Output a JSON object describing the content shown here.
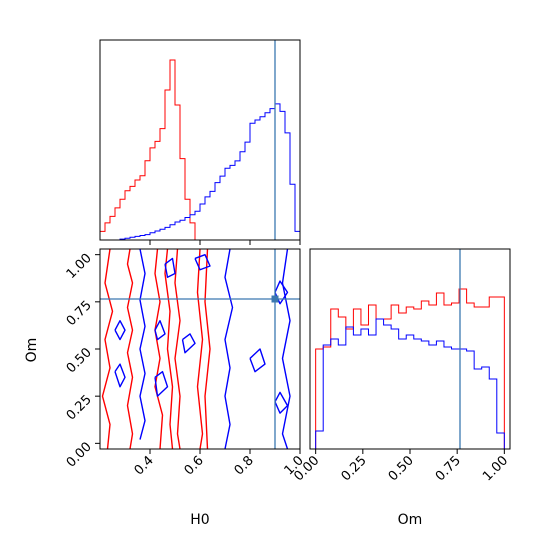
{
  "chart_data": {
    "type": "corner",
    "parameters": [
      "H0",
      "Om"
    ],
    "truths": {
      "H0": 0.9,
      "Om": 0.765
    },
    "series": [
      {
        "color": "#ff0000"
      },
      {
        "color": "#0000ff"
      }
    ],
    "truth_color": "#3b78b0",
    "h0_hist": {
      "xlim": [
        0.2,
        1.0
      ],
      "bin_edges": [
        0.2,
        0.22,
        0.24,
        0.26,
        0.28,
        0.3,
        0.32,
        0.34,
        0.36,
        0.38,
        0.4,
        0.42,
        0.44,
        0.46,
        0.48,
        0.5,
        0.52,
        0.54,
        0.56,
        0.58,
        0.6,
        0.62,
        0.64,
        0.66,
        0.68,
        0.7,
        0.72,
        0.74,
        0.76,
        0.78,
        0.8,
        0.82,
        0.84,
        0.86,
        0.88,
        0.9,
        0.92,
        0.94,
        0.96,
        0.98,
        1.0
      ],
      "red": [
        0.04,
        0.08,
        0.11,
        0.15,
        0.19,
        0.23,
        0.25,
        0.28,
        0.3,
        0.37,
        0.43,
        0.46,
        0.52,
        0.7,
        0.84,
        0.63,
        0.38,
        0.19,
        0.08,
        0.0,
        0.0,
        0.0,
        0.0,
        0.0,
        0.0,
        0.0,
        0.0,
        0.0,
        0.0,
        0.0,
        0.0,
        0.0,
        0.0,
        0.0,
        0.0,
        0.0,
        0.0,
        0.0,
        0.0,
        0.0
      ],
      "blue": [
        0.0,
        0.0,
        0.0,
        0.0,
        0.004,
        0.008,
        0.013,
        0.017,
        0.021,
        0.025,
        0.034,
        0.042,
        0.05,
        0.059,
        0.071,
        0.084,
        0.092,
        0.105,
        0.118,
        0.134,
        0.168,
        0.201,
        0.227,
        0.268,
        0.298,
        0.335,
        0.348,
        0.369,
        0.412,
        0.457,
        0.545,
        0.56,
        0.575,
        0.594,
        0.613,
        0.635,
        0.6,
        0.5,
        0.26,
        0.04
      ]
    },
    "om_hist": {
      "xlim": [
        -0.03,
        1.03
      ],
      "ticks": [
        "0.00",
        "0.25",
        "0.50",
        "0.75",
        "1.00"
      ],
      "bin_edges": [
        0.0,
        0.04,
        0.08,
        0.12,
        0.16,
        0.2,
        0.24,
        0.28,
        0.32,
        0.36,
        0.4,
        0.44,
        0.48,
        0.52,
        0.56,
        0.6,
        0.64,
        0.68,
        0.72,
        0.76,
        0.8,
        0.84,
        0.88,
        0.92,
        0.96,
        1.0
      ],
      "red": [
        0.5,
        0.51,
        0.7,
        0.66,
        0.6,
        0.7,
        0.62,
        0.72,
        0.65,
        0.65,
        0.72,
        0.68,
        0.71,
        0.7,
        0.74,
        0.72,
        0.78,
        0.72,
        0.73,
        0.8,
        0.73,
        0.71,
        0.71,
        0.76,
        0.76
      ],
      "blue": [
        0.09,
        0.52,
        0.55,
        0.52,
        0.61,
        0.57,
        0.6,
        0.57,
        0.65,
        0.62,
        0.6,
        0.55,
        0.57,
        0.55,
        0.54,
        0.52,
        0.54,
        0.51,
        0.5,
        0.5,
        0.49,
        0.4,
        0.41,
        0.35,
        0.08
      ]
    },
    "joint": {
      "x_param": "H0",
      "y_param": "Om",
      "xlim": [
        0.2,
        1.0
      ],
      "ylim": [
        -0.03,
        1.03
      ],
      "xlabel": "H0",
      "ylabel": "Om",
      "x_ticks": [
        "0.4",
        "0.6",
        "0.8",
        "1.0"
      ],
      "y_ticks": [
        "0.00",
        "0.25",
        "0.50",
        "0.75",
        "1.00"
      ],
      "red_contours": [
        [
          [
            0.32,
            1.03
          ],
          [
            0.31,
            0.95
          ],
          [
            0.33,
            0.85
          ],
          [
            0.31,
            0.72
          ],
          [
            0.33,
            0.6
          ],
          [
            0.31,
            0.48
          ],
          [
            0.33,
            0.35
          ],
          [
            0.31,
            0.2
          ],
          [
            0.33,
            0.05
          ],
          [
            0.32,
            -0.03
          ]
        ],
        [
          [
            0.43,
            1.03
          ],
          [
            0.42,
            0.9
          ],
          [
            0.44,
            0.75
          ],
          [
            0.42,
            0.6
          ],
          [
            0.44,
            0.45
          ],
          [
            0.42,
            0.3
          ],
          [
            0.45,
            0.15
          ],
          [
            0.44,
            -0.03
          ]
        ],
        [
          [
            0.47,
            1.03
          ],
          [
            0.46,
            0.9
          ],
          [
            0.48,
            0.7
          ],
          [
            0.47,
            0.5
          ],
          [
            0.49,
            0.3
          ],
          [
            0.48,
            0.1
          ],
          [
            0.49,
            -0.03
          ]
        ],
        [
          [
            0.51,
            1.03
          ],
          [
            0.5,
            0.85
          ],
          [
            0.52,
            0.65
          ],
          [
            0.5,
            0.45
          ],
          [
            0.52,
            0.25
          ],
          [
            0.51,
            0.05
          ],
          [
            0.52,
            -0.03
          ]
        ],
        [
          [
            0.24,
            1.03
          ],
          [
            0.22,
            0.85
          ],
          [
            0.25,
            0.7
          ],
          [
            0.22,
            0.55
          ],
          [
            0.24,
            0.4
          ],
          [
            0.21,
            0.25
          ],
          [
            0.24,
            0.1
          ],
          [
            0.23,
            -0.03
          ]
        ],
        [
          [
            0.6,
            1.03
          ],
          [
            0.59,
            0.8
          ],
          [
            0.61,
            0.55
          ],
          [
            0.59,
            0.3
          ],
          [
            0.61,
            0.05
          ],
          [
            0.6,
            -0.03
          ]
        ],
        [
          [
            0.63,
            1.03
          ],
          [
            0.62,
            0.75
          ],
          [
            0.64,
            0.5
          ],
          [
            0.62,
            0.25
          ],
          [
            0.63,
            -0.03
          ]
        ]
      ],
      "blue_contours": [
        [
          [
            0.36,
            1.03
          ],
          [
            0.38,
            0.9
          ],
          [
            0.36,
            0.76
          ],
          [
            0.38,
            0.62
          ],
          [
            0.36,
            0.5
          ],
          [
            0.38,
            0.37
          ],
          [
            0.36,
            0.25
          ],
          [
            0.38,
            0.12
          ],
          [
            0.36,
            0.02
          ]
        ],
        [
          [
            0.72,
            1.03
          ],
          [
            0.7,
            0.88
          ],
          [
            0.73,
            0.72
          ],
          [
            0.7,
            0.55
          ],
          [
            0.72,
            0.4
          ],
          [
            0.7,
            0.25
          ],
          [
            0.72,
            0.1
          ],
          [
            0.7,
            -0.03
          ]
        ],
        [
          [
            0.53,
            0.55
          ],
          [
            0.56,
            0.58
          ],
          [
            0.58,
            0.53
          ],
          [
            0.54,
            0.48
          ],
          [
            0.53,
            0.55
          ]
        ],
        [
          [
            0.42,
            0.35
          ],
          [
            0.45,
            0.38
          ],
          [
            0.47,
            0.3
          ],
          [
            0.43,
            0.25
          ],
          [
            0.42,
            0.35
          ]
        ],
        [
          [
            0.42,
            0.6
          ],
          [
            0.44,
            0.65
          ],
          [
            0.46,
            0.58
          ],
          [
            0.43,
            0.55
          ],
          [
            0.42,
            0.6
          ]
        ],
        [
          [
            0.26,
            0.38
          ],
          [
            0.28,
            0.3
          ],
          [
            0.3,
            0.35
          ],
          [
            0.28,
            0.42
          ],
          [
            0.26,
            0.38
          ]
        ],
        [
          [
            0.26,
            0.6
          ],
          [
            0.28,
            0.65
          ],
          [
            0.3,
            0.6
          ],
          [
            0.28,
            0.55
          ],
          [
            0.26,
            0.6
          ]
        ],
        [
          [
            0.46,
            0.95
          ],
          [
            0.49,
            0.98
          ],
          [
            0.5,
            0.9
          ],
          [
            0.47,
            0.88
          ],
          [
            0.46,
            0.95
          ]
        ],
        [
          [
            0.58,
            0.98
          ],
          [
            0.62,
            1.0
          ],
          [
            0.64,
            0.94
          ],
          [
            0.6,
            0.92
          ],
          [
            0.58,
            0.98
          ]
        ],
        [
          [
            0.8,
            0.45
          ],
          [
            0.84,
            0.5
          ],
          [
            0.86,
            0.42
          ],
          [
            0.82,
            0.38
          ],
          [
            0.8,
            0.45
          ]
        ],
        [
          [
            0.9,
            0.8
          ],
          [
            0.92,
            0.86
          ],
          [
            0.95,
            0.8
          ],
          [
            0.92,
            0.74
          ],
          [
            0.9,
            0.8
          ]
        ],
        [
          [
            0.95,
            1.03
          ],
          [
            0.93,
            0.85
          ],
          [
            0.96,
            0.65
          ],
          [
            0.93,
            0.45
          ],
          [
            0.96,
            0.25
          ],
          [
            0.93,
            0.05
          ],
          [
            0.95,
            -0.03
          ]
        ],
        [
          [
            0.9,
            0.22
          ],
          [
            0.92,
            0.27
          ],
          [
            0.95,
            0.2
          ],
          [
            0.92,
            0.16
          ],
          [
            0.9,
            0.22
          ]
        ]
      ]
    }
  }
}
